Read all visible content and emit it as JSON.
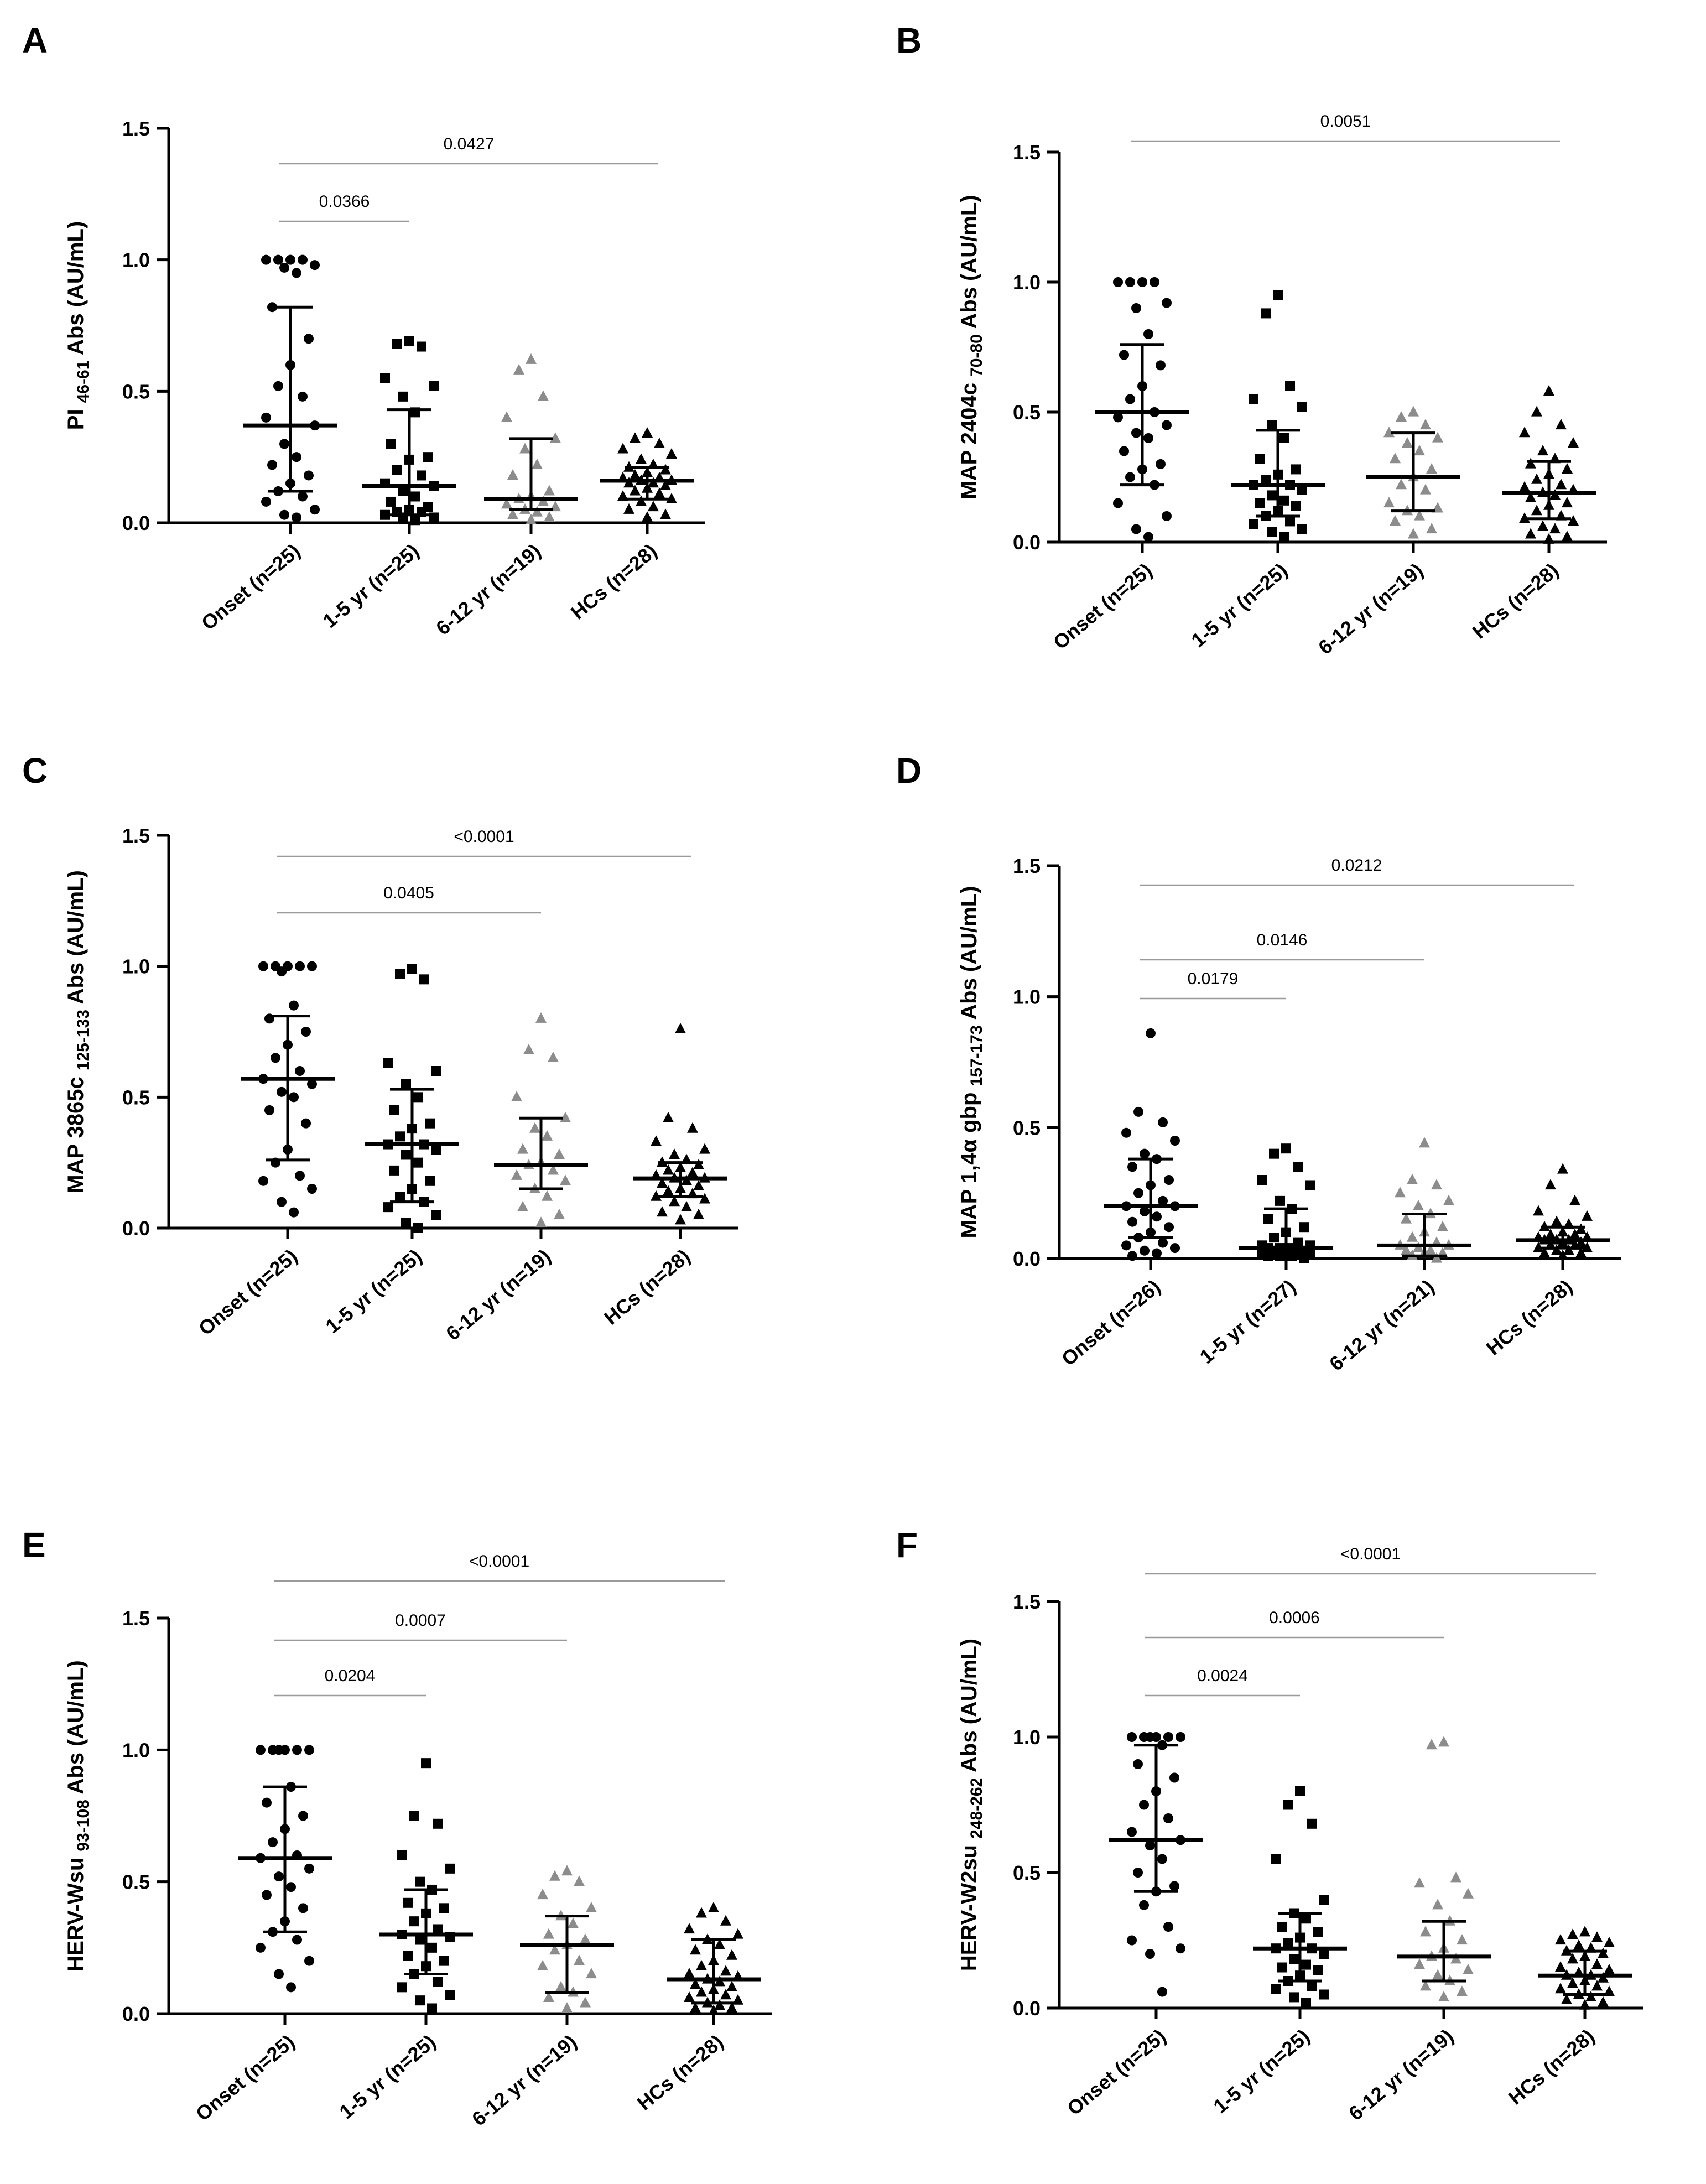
{
  "chart_data": [
    {
      "panel": "A",
      "type": "scatter",
      "ylabel": {
        "main": "PI",
        "sub": "46-61",
        "tail": "Abs (AU/mL)"
      },
      "ylim": [
        0,
        1.5
      ],
      "yticks": [
        "0.0",
        "0.5",
        "1.0",
        "1.5"
      ],
      "categories": [
        "Onset (n=25)",
        "1-5 yr (n=25)",
        "6-12 yr (n=19)",
        "HCs (n=28)"
      ],
      "series": [
        {
          "name": "Onset (n=25)",
          "marker": "circle",
          "color": "#000000",
          "median": 0.37,
          "q1": 0.12,
          "q3": 0.82,
          "values": [
            1.0,
            1.0,
            1.0,
            1.0,
            0.98,
            0.97,
            0.95,
            0.82,
            0.7,
            0.6,
            0.52,
            0.48,
            0.4,
            0.37,
            0.3,
            0.25,
            0.22,
            0.18,
            0.15,
            0.12,
            0.1,
            0.08,
            0.05,
            0.03,
            0.02
          ]
        },
        {
          "name": "1-5 yr (n=25)",
          "marker": "square",
          "color": "#000000",
          "median": 0.14,
          "q1": 0.03,
          "q3": 0.43,
          "values": [
            0.69,
            0.68,
            0.67,
            0.55,
            0.52,
            0.48,
            0.42,
            0.3,
            0.25,
            0.24,
            0.2,
            0.18,
            0.15,
            0.14,
            0.12,
            0.1,
            0.08,
            0.06,
            0.05,
            0.04,
            0.04,
            0.03,
            0.02,
            0.02,
            0.01
          ]
        },
        {
          "name": "6-12 yr (n=19)",
          "marker": "triangle",
          "color": "#8c8c8c",
          "median": 0.09,
          "q1": 0.05,
          "q3": 0.32,
          "values": [
            0.62,
            0.58,
            0.48,
            0.4,
            0.32,
            0.28,
            0.22,
            0.18,
            0.12,
            0.1,
            0.09,
            0.08,
            0.07,
            0.06,
            0.05,
            0.04,
            0.03,
            0.02,
            0.01
          ]
        },
        {
          "name": "HCs (n=28)",
          "marker": "triangle",
          "color": "#000000",
          "median": 0.16,
          "q1": 0.09,
          "q3": 0.21,
          "values": [
            0.34,
            0.32,
            0.3,
            0.28,
            0.26,
            0.24,
            0.22,
            0.21,
            0.2,
            0.19,
            0.18,
            0.17,
            0.17,
            0.16,
            0.16,
            0.15,
            0.15,
            0.14,
            0.13,
            0.12,
            0.11,
            0.1,
            0.09,
            0.08,
            0.06,
            0.05,
            0.03,
            0.02
          ]
        }
      ],
      "comparisons": [
        {
          "from": 0,
          "to": 1,
          "label": "0.0366"
        },
        {
          "from": 0,
          "to": 3,
          "label": "0.0427"
        }
      ]
    },
    {
      "panel": "B",
      "type": "scatter",
      "ylabel": {
        "main": "MAP 2404c",
        "sub": "70-80",
        "tail": "Abs (AU/mL)"
      },
      "ylim": [
        0,
        1.5
      ],
      "yticks": [
        "0.0",
        "0.5",
        "1.0",
        "1.5"
      ],
      "categories": [
        "Onset (n=25)",
        "1-5 yr (n=25)",
        "6-12 yr (n=19)",
        "HCs (n=28)"
      ],
      "series": [
        {
          "name": "Onset (n=25)",
          "marker": "circle",
          "color": "#000000",
          "median": 0.5,
          "q1": 0.22,
          "q3": 0.76,
          "values": [
            1.0,
            1.0,
            1.0,
            1.0,
            0.92,
            0.9,
            0.8,
            0.72,
            0.68,
            0.6,
            0.55,
            0.5,
            0.48,
            0.45,
            0.42,
            0.4,
            0.35,
            0.3,
            0.28,
            0.25,
            0.22,
            0.15,
            0.1,
            0.05,
            0.02
          ]
        },
        {
          "name": "1-5 yr (n=25)",
          "marker": "square",
          "color": "#000000",
          "median": 0.22,
          "q1": 0.1,
          "q3": 0.43,
          "values": [
            0.95,
            0.88,
            0.6,
            0.55,
            0.52,
            0.45,
            0.4,
            0.32,
            0.28,
            0.26,
            0.24,
            0.22,
            0.22,
            0.2,
            0.18,
            0.16,
            0.15,
            0.14,
            0.12,
            0.1,
            0.08,
            0.07,
            0.05,
            0.04,
            0.02
          ]
        },
        {
          "name": "6-12 yr (n=19)",
          "marker": "triangle",
          "color": "#8c8c8c",
          "median": 0.25,
          "q1": 0.12,
          "q3": 0.42,
          "values": [
            0.5,
            0.48,
            0.45,
            0.42,
            0.4,
            0.38,
            0.35,
            0.32,
            0.28,
            0.25,
            0.22,
            0.2,
            0.15,
            0.13,
            0.12,
            0.1,
            0.08,
            0.05,
            0.03
          ]
        },
        {
          "name": "HCs (n=28)",
          "marker": "triangle",
          "color": "#000000",
          "median": 0.19,
          "q1": 0.09,
          "q3": 0.31,
          "values": [
            0.58,
            0.5,
            0.45,
            0.42,
            0.38,
            0.35,
            0.32,
            0.3,
            0.28,
            0.26,
            0.24,
            0.22,
            0.21,
            0.2,
            0.19,
            0.18,
            0.17,
            0.15,
            0.14,
            0.12,
            0.1,
            0.09,
            0.08,
            0.06,
            0.05,
            0.03,
            0.02,
            0.01
          ]
        }
      ],
      "comparisons": [
        {
          "from": 0,
          "to": 3,
          "label": "0.0051"
        }
      ]
    },
    {
      "panel": "C",
      "type": "scatter",
      "ylabel": {
        "main": "MAP 3865c",
        "sub": "125-133",
        "tail": "Abs (AU/mL)"
      },
      "ylim": [
        0,
        1.5
      ],
      "yticks": [
        "0.0",
        "0.5",
        "1.0",
        "1.5"
      ],
      "categories": [
        "Onset (n=25)",
        "1-5 yr (n=25)",
        "6-12 yr (n=19)",
        "HCs (n=28)"
      ],
      "series": [
        {
          "name": "Onset (n=25)",
          "marker": "circle",
          "color": "#000000",
          "median": 0.57,
          "q1": 0.26,
          "q3": 0.81,
          "values": [
            1.0,
            1.0,
            1.0,
            1.0,
            1.0,
            0.98,
            0.85,
            0.8,
            0.75,
            0.7,
            0.65,
            0.6,
            0.57,
            0.55,
            0.52,
            0.5,
            0.45,
            0.4,
            0.3,
            0.25,
            0.2,
            0.18,
            0.15,
            0.1,
            0.06
          ]
        },
        {
          "name": "1-5 yr (n=25)",
          "marker": "square",
          "color": "#000000",
          "median": 0.32,
          "q1": 0.1,
          "q3": 0.53,
          "values": [
            0.99,
            0.97,
            0.95,
            0.63,
            0.6,
            0.55,
            0.5,
            0.45,
            0.4,
            0.38,
            0.35,
            0.32,
            0.32,
            0.3,
            0.28,
            0.25,
            0.22,
            0.18,
            0.15,
            0.12,
            0.1,
            0.08,
            0.05,
            0.02,
            0.0
          ]
        },
        {
          "name": "6-12 yr (n=19)",
          "marker": "triangle",
          "color": "#8c8c8c",
          "median": 0.24,
          "q1": 0.15,
          "q3": 0.42,
          "values": [
            0.8,
            0.68,
            0.65,
            0.5,
            0.42,
            0.38,
            0.35,
            0.3,
            0.28,
            0.25,
            0.24,
            0.22,
            0.2,
            0.18,
            0.15,
            0.12,
            0.08,
            0.05,
            0.02
          ]
        },
        {
          "name": "HCs (n=28)",
          "marker": "triangle",
          "color": "#000000",
          "median": 0.19,
          "q1": 0.12,
          "q3": 0.25,
          "values": [
            0.76,
            0.42,
            0.38,
            0.33,
            0.3,
            0.28,
            0.26,
            0.25,
            0.24,
            0.23,
            0.22,
            0.21,
            0.2,
            0.19,
            0.19,
            0.18,
            0.17,
            0.16,
            0.15,
            0.14,
            0.13,
            0.12,
            0.11,
            0.1,
            0.08,
            0.06,
            0.05,
            0.03
          ]
        }
      ],
      "comparisons": [
        {
          "from": 0,
          "to": 2,
          "label": "0.0405"
        },
        {
          "from": 0,
          "to": 3,
          "label": "<0.0001"
        }
      ]
    },
    {
      "panel": "D",
      "type": "scatter",
      "ylabel": {
        "main": "MAP 1,4α gbp",
        "sub": "157-173",
        "tail": "Abs (AU/mL)"
      },
      "ylim": [
        0,
        1.5
      ],
      "yticks": [
        "0.0",
        "0.5",
        "1.0",
        "1.5"
      ],
      "categories": [
        "Onset (n=26)",
        "1-5 yr (n=27)",
        "6-12 yr (n=21)",
        "HCs (n=28)"
      ],
      "series": [
        {
          "name": "Onset (n=26)",
          "marker": "circle",
          "color": "#000000",
          "median": 0.2,
          "q1": 0.08,
          "q3": 0.38,
          "values": [
            0.86,
            0.56,
            0.52,
            0.48,
            0.45,
            0.4,
            0.38,
            0.35,
            0.3,
            0.28,
            0.25,
            0.22,
            0.2,
            0.2,
            0.18,
            0.16,
            0.14,
            0.12,
            0.1,
            0.08,
            0.06,
            0.05,
            0.04,
            0.03,
            0.02,
            0.01
          ]
        },
        {
          "name": "1-5 yr (n=27)",
          "marker": "square",
          "color": "#000000",
          "median": 0.04,
          "q1": 0.01,
          "q3": 0.19,
          "values": [
            0.42,
            0.4,
            0.35,
            0.3,
            0.28,
            0.22,
            0.19,
            0.15,
            0.12,
            0.1,
            0.08,
            0.06,
            0.05,
            0.05,
            0.04,
            0.04,
            0.04,
            0.03,
            0.03,
            0.03,
            0.02,
            0.02,
            0.02,
            0.01,
            0.01,
            0.01,
            0.0
          ]
        },
        {
          "name": "6-12 yr (n=21)",
          "marker": "triangle",
          "color": "#8c8c8c",
          "median": 0.05,
          "q1": 0.01,
          "q3": 0.17,
          "values": [
            0.44,
            0.3,
            0.28,
            0.25,
            0.22,
            0.2,
            0.17,
            0.15,
            0.12,
            0.1,
            0.08,
            0.06,
            0.05,
            0.05,
            0.04,
            0.03,
            0.03,
            0.02,
            0.02,
            0.01,
            0.0
          ]
        },
        {
          "name": "HCs (n=28)",
          "marker": "triangle",
          "color": "#000000",
          "median": 0.07,
          "q1": 0.04,
          "q3": 0.12,
          "values": [
            0.34,
            0.28,
            0.22,
            0.18,
            0.16,
            0.14,
            0.13,
            0.12,
            0.11,
            0.1,
            0.09,
            0.09,
            0.08,
            0.08,
            0.07,
            0.07,
            0.07,
            0.06,
            0.06,
            0.05,
            0.05,
            0.04,
            0.04,
            0.03,
            0.03,
            0.02,
            0.02,
            0.01
          ]
        }
      ],
      "comparisons": [
        {
          "from": 0,
          "to": 1,
          "label": "0.0179"
        },
        {
          "from": 0,
          "to": 2,
          "label": "0.0146"
        },
        {
          "from": 0,
          "to": 3,
          "label": "0.0212"
        }
      ]
    },
    {
      "panel": "E",
      "type": "scatter",
      "ylabel": {
        "main": "HERV-Wsu",
        "sub": "93-108",
        "tail": "Abs (AU/mL)"
      },
      "ylim": [
        0,
        1.5
      ],
      "yticks": [
        "0.0",
        "0.5",
        "1.0",
        "1.5"
      ],
      "categories": [
        "Onset (n=25)",
        "1-5 yr (n=25)",
        "6-12 yr (n=19)",
        "HCs (n=28)"
      ],
      "series": [
        {
          "name": "Onset (n=25)",
          "marker": "circle",
          "color": "#000000",
          "median": 0.59,
          "q1": 0.31,
          "q3": 0.86,
          "values": [
            1.0,
            1.0,
            1.0,
            1.0,
            1.0,
            1.0,
            0.86,
            0.8,
            0.75,
            0.7,
            0.65,
            0.6,
            0.59,
            0.55,
            0.52,
            0.48,
            0.45,
            0.4,
            0.35,
            0.31,
            0.28,
            0.25,
            0.2,
            0.15,
            0.1
          ]
        },
        {
          "name": "1-5 yr (n=25)",
          "marker": "square",
          "color": "#000000",
          "median": 0.3,
          "q1": 0.15,
          "q3": 0.47,
          "values": [
            0.95,
            0.75,
            0.72,
            0.6,
            0.55,
            0.5,
            0.47,
            0.42,
            0.4,
            0.38,
            0.35,
            0.32,
            0.3,
            0.29,
            0.28,
            0.25,
            0.22,
            0.2,
            0.18,
            0.15,
            0.12,
            0.1,
            0.07,
            0.05,
            0.02
          ]
        },
        {
          "name": "6-12 yr (n=19)",
          "marker": "triangle",
          "color": "#8c8c8c",
          "median": 0.26,
          "q1": 0.08,
          "q3": 0.37,
          "values": [
            0.54,
            0.52,
            0.5,
            0.45,
            0.4,
            0.37,
            0.34,
            0.3,
            0.28,
            0.26,
            0.24,
            0.2,
            0.18,
            0.15,
            0.1,
            0.08,
            0.06,
            0.04,
            0.02
          ]
        },
        {
          "name": "HCs (n=28)",
          "marker": "triangle",
          "color": "#000000",
          "median": 0.13,
          "q1": 0.04,
          "q3": 0.28,
          "values": [
            0.4,
            0.38,
            0.35,
            0.32,
            0.3,
            0.28,
            0.26,
            0.24,
            0.22,
            0.2,
            0.18,
            0.16,
            0.15,
            0.14,
            0.13,
            0.12,
            0.11,
            0.1,
            0.09,
            0.08,
            0.07,
            0.06,
            0.05,
            0.04,
            0.03,
            0.02,
            0.02,
            0.01
          ]
        }
      ],
      "comparisons": [
        {
          "from": 0,
          "to": 1,
          "label": "0.0204"
        },
        {
          "from": 0,
          "to": 2,
          "label": "0.0007"
        },
        {
          "from": 0,
          "to": 3,
          "label": "<0.0001"
        }
      ]
    },
    {
      "panel": "F",
      "type": "scatter",
      "ylabel": {
        "main": "HERV-W2su",
        "sub": "248-262",
        "tail": "Abs (AU/mL)"
      },
      "ylim": [
        0,
        1.5
      ],
      "yticks": [
        "0.0",
        "0.5",
        "1.0",
        "1.5"
      ],
      "categories": [
        "Onset (n=25)",
        "1-5 yr (n=25)",
        "6-12 yr (n=19)",
        "HCs (n=28)"
      ],
      "series": [
        {
          "name": "Onset (n=25)",
          "marker": "circle",
          "color": "#000000",
          "median": 0.62,
          "q1": 0.43,
          "q3": 0.97,
          "values": [
            1.0,
            1.0,
            1.0,
            1.0,
            1.0,
            1.0,
            0.97,
            0.9,
            0.85,
            0.8,
            0.75,
            0.7,
            0.65,
            0.62,
            0.6,
            0.55,
            0.5,
            0.45,
            0.43,
            0.38,
            0.3,
            0.25,
            0.22,
            0.2,
            0.06
          ]
        },
        {
          "name": "1-5 yr (n=25)",
          "marker": "square",
          "color": "#000000",
          "median": 0.22,
          "q1": 0.1,
          "q3": 0.35,
          "values": [
            0.8,
            0.75,
            0.68,
            0.55,
            0.4,
            0.35,
            0.33,
            0.3,
            0.28,
            0.26,
            0.24,
            0.22,
            0.22,
            0.2,
            0.18,
            0.16,
            0.15,
            0.14,
            0.12,
            0.1,
            0.08,
            0.07,
            0.05,
            0.04,
            0.02
          ]
        },
        {
          "name": "6-12 yr (n=19)",
          "marker": "triangle",
          "color": "#8c8c8c",
          "median": 0.19,
          "q1": 0.1,
          "q3": 0.32,
          "values": [
            0.98,
            0.97,
            0.48,
            0.46,
            0.42,
            0.38,
            0.32,
            0.28,
            0.25,
            0.22,
            0.19,
            0.18,
            0.16,
            0.14,
            0.12,
            0.1,
            0.08,
            0.06,
            0.04
          ]
        },
        {
          "name": "HCs (n=28)",
          "marker": "triangle",
          "color": "#000000",
          "median": 0.12,
          "q1": 0.05,
          "q3": 0.21,
          "values": [
            0.28,
            0.27,
            0.26,
            0.25,
            0.24,
            0.23,
            0.22,
            0.21,
            0.2,
            0.19,
            0.18,
            0.16,
            0.15,
            0.14,
            0.13,
            0.12,
            0.12,
            0.11,
            0.1,
            0.09,
            0.08,
            0.07,
            0.06,
            0.05,
            0.04,
            0.03,
            0.02,
            0.01
          ]
        }
      ],
      "comparisons": [
        {
          "from": 0,
          "to": 1,
          "label": "0.0024"
        },
        {
          "from": 0,
          "to": 2,
          "label": "0.0006"
        },
        {
          "from": 0,
          "to": 3,
          "label": "<0.0001"
        }
      ]
    }
  ]
}
